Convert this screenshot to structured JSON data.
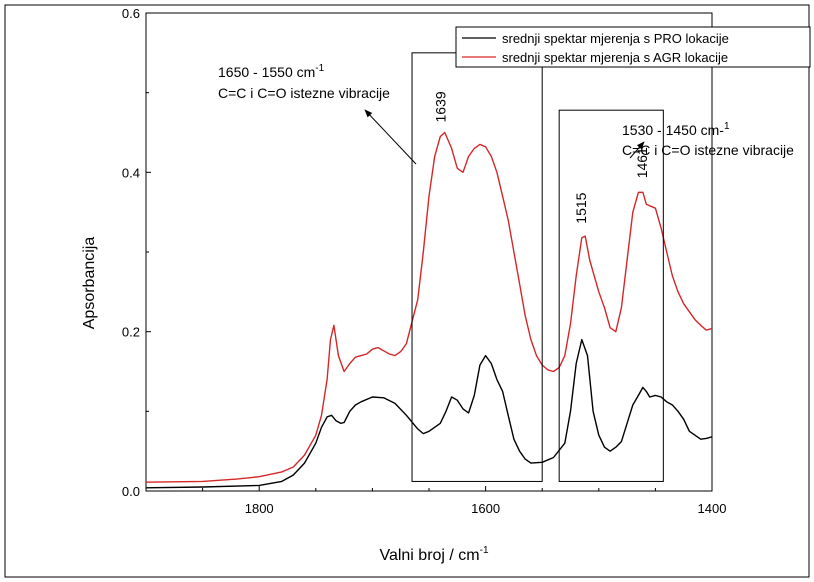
{
  "chart_data": {
    "type": "line",
    "xlabel": "Valni broj / cm",
    "xlabel_sup": "-1",
    "ylabel": "Apsorbancija",
    "xlim": [
      1900,
      1400
    ],
    "ylim": [
      0,
      0.6
    ],
    "x_ticks": [
      1800,
      1600,
      1400
    ],
    "x_tick_labels": [
      "1800",
      "1600",
      "1400"
    ],
    "y_ticks": [
      0.0,
      0.2,
      0.4,
      0.6
    ],
    "y_tick_labels": [
      "0.0",
      "0.2",
      "0.4",
      "0.6"
    ],
    "grid": false,
    "legend_position": "top-right",
    "series": [
      {
        "name": "srednji spektar mjerenja s PRO lokacije",
        "color": "#000000",
        "x": [
          1900,
          1850,
          1800,
          1780,
          1770,
          1760,
          1750,
          1745,
          1740,
          1736,
          1732,
          1728,
          1725,
          1720,
          1715,
          1710,
          1700,
          1690,
          1680,
          1670,
          1660,
          1655,
          1650,
          1640,
          1635,
          1630,
          1625,
          1620,
          1615,
          1610,
          1605,
          1600,
          1595,
          1590,
          1585,
          1580,
          1575,
          1570,
          1565,
          1560,
          1550,
          1540,
          1530,
          1525,
          1520,
          1515,
          1510,
          1505,
          1500,
          1495,
          1490,
          1485,
          1480,
          1475,
          1470,
          1465,
          1461,
          1458,
          1455,
          1450,
          1445,
          1440,
          1435,
          1430,
          1425,
          1420,
          1410,
          1405,
          1400
        ],
        "y": [
          0.004,
          0.005,
          0.007,
          0.012,
          0.02,
          0.035,
          0.06,
          0.08,
          0.093,
          0.095,
          0.088,
          0.085,
          0.086,
          0.1,
          0.108,
          0.112,
          0.118,
          0.117,
          0.11,
          0.095,
          0.078,
          0.072,
          0.075,
          0.085,
          0.1,
          0.118,
          0.114,
          0.103,
          0.098,
          0.12,
          0.158,
          0.17,
          0.16,
          0.14,
          0.125,
          0.095,
          0.065,
          0.05,
          0.04,
          0.035,
          0.036,
          0.042,
          0.06,
          0.1,
          0.16,
          0.19,
          0.17,
          0.1,
          0.07,
          0.055,
          0.05,
          0.055,
          0.062,
          0.085,
          0.108,
          0.12,
          0.13,
          0.125,
          0.118,
          0.12,
          0.118,
          0.112,
          0.108,
          0.1,
          0.09,
          0.075,
          0.065,
          0.066,
          0.068
        ]
      },
      {
        "name": "srednji spektar mjerenja s AGR lokacije",
        "color": "#d62728",
        "x": [
          1900,
          1850,
          1820,
          1800,
          1780,
          1770,
          1760,
          1750,
          1745,
          1740,
          1737,
          1734,
          1730,
          1725,
          1720,
          1715,
          1710,
          1705,
          1700,
          1695,
          1690,
          1685,
          1680,
          1675,
          1670,
          1660,
          1655,
          1650,
          1645,
          1640,
          1636,
          1630,
          1625,
          1620,
          1615,
          1610,
          1605,
          1600,
          1595,
          1590,
          1585,
          1580,
          1575,
          1570,
          1565,
          1560,
          1555,
          1550,
          1545,
          1540,
          1535,
          1530,
          1525,
          1520,
          1515,
          1512,
          1508,
          1505,
          1500,
          1495,
          1490,
          1485,
          1480,
          1475,
          1470,
          1465,
          1461,
          1458,
          1455,
          1450,
          1445,
          1440,
          1435,
          1430,
          1425,
          1420,
          1415,
          1410,
          1405,
          1400
        ],
        "y": [
          0.011,
          0.012,
          0.015,
          0.018,
          0.024,
          0.03,
          0.045,
          0.07,
          0.095,
          0.14,
          0.19,
          0.208,
          0.17,
          0.15,
          0.16,
          0.168,
          0.17,
          0.172,
          0.178,
          0.18,
          0.176,
          0.172,
          0.17,
          0.175,
          0.185,
          0.24,
          0.3,
          0.37,
          0.42,
          0.445,
          0.45,
          0.43,
          0.405,
          0.4,
          0.42,
          0.43,
          0.435,
          0.432,
          0.42,
          0.4,
          0.37,
          0.34,
          0.3,
          0.26,
          0.22,
          0.19,
          0.17,
          0.158,
          0.152,
          0.15,
          0.155,
          0.17,
          0.21,
          0.27,
          0.318,
          0.32,
          0.29,
          0.275,
          0.25,
          0.23,
          0.205,
          0.2,
          0.23,
          0.29,
          0.35,
          0.375,
          0.375,
          0.36,
          0.358,
          0.355,
          0.33,
          0.3,
          0.27,
          0.25,
          0.235,
          0.225,
          0.215,
          0.208,
          0.202,
          0.204
        ]
      }
    ],
    "peak_labels": [
      {
        "text": "1639",
        "x": 1639
      },
      {
        "text": "1515",
        "x": 1515
      },
      {
        "text": "1461",
        "x": 1461
      }
    ],
    "regions": [
      {
        "x_range": [
          1665,
          1550
        ],
        "y_range": [
          0.012,
          0.55
        ],
        "label_line1": "1650 - 1550 cm",
        "label_sup": "-1",
        "label_line2": "C=C i C=O istezne vibracije"
      },
      {
        "x_range": [
          1535,
          1443
        ],
        "y_range": [
          0.012,
          0.478
        ],
        "label_line1": "1530 - 1450 cm-",
        "label_sup": "1",
        "label_line2": "C=C i C=O istezne vibracije"
      }
    ]
  }
}
